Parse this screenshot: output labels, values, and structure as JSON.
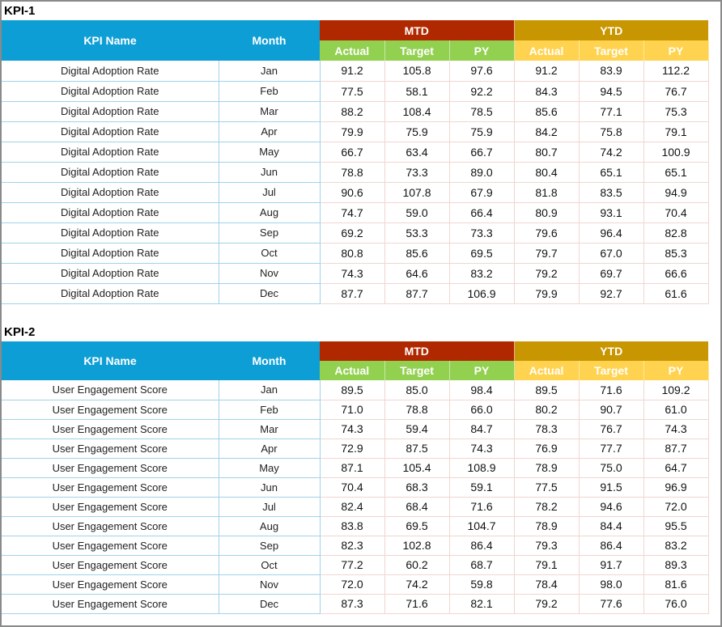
{
  "headers": {
    "kpi_name": "KPI Name",
    "month": "Month",
    "mtd": "MTD",
    "ytd": "YTD",
    "actual": "Actual",
    "target": "Target",
    "py": "PY"
  },
  "colors": {
    "header_blue": "#0E9ED6",
    "mtd_header": "#B02800",
    "ytd_header": "#C89600",
    "mtd_sub": "#92D050",
    "ytd_sub": "#FFD34F"
  },
  "tables": [
    {
      "label": "KPI-1",
      "kpi": "Digital Adoption Rate",
      "rows": [
        [
          "Jan",
          "91.2",
          "105.8",
          "97.6",
          "91.2",
          "83.9",
          "112.2"
        ],
        [
          "Feb",
          "77.5",
          "58.1",
          "92.2",
          "84.3",
          "94.5",
          "76.7"
        ],
        [
          "Mar",
          "88.2",
          "108.4",
          "78.5",
          "85.6",
          "77.1",
          "75.3"
        ],
        [
          "Apr",
          "79.9",
          "75.9",
          "75.9",
          "84.2",
          "75.8",
          "79.1"
        ],
        [
          "May",
          "66.7",
          "63.4",
          "66.7",
          "80.7",
          "74.2",
          "100.9"
        ],
        [
          "Jun",
          "78.8",
          "73.3",
          "89.0",
          "80.4",
          "65.1",
          "65.1"
        ],
        [
          "Jul",
          "90.6",
          "107.8",
          "67.9",
          "81.8",
          "83.5",
          "94.9"
        ],
        [
          "Aug",
          "74.7",
          "59.0",
          "66.4",
          "80.9",
          "93.1",
          "70.4"
        ],
        [
          "Sep",
          "69.2",
          "53.3",
          "73.3",
          "79.6",
          "96.4",
          "82.8"
        ],
        [
          "Oct",
          "80.8",
          "85.6",
          "69.5",
          "79.7",
          "67.0",
          "85.3"
        ],
        [
          "Nov",
          "74.3",
          "64.6",
          "83.2",
          "79.2",
          "69.7",
          "66.6"
        ],
        [
          "Dec",
          "87.7",
          "87.7",
          "106.9",
          "79.9",
          "92.7",
          "61.6"
        ]
      ]
    },
    {
      "label": "KPI-2",
      "kpi": "User Engagement Score",
      "rows": [
        [
          "Jan",
          "89.5",
          "85.0",
          "98.4",
          "89.5",
          "71.6",
          "109.2"
        ],
        [
          "Feb",
          "71.0",
          "78.8",
          "66.0",
          "80.2",
          "90.7",
          "61.0"
        ],
        [
          "Mar",
          "74.3",
          "59.4",
          "84.7",
          "78.3",
          "76.7",
          "74.3"
        ],
        [
          "Apr",
          "72.9",
          "87.5",
          "74.3",
          "76.9",
          "77.7",
          "87.7"
        ],
        [
          "May",
          "87.1",
          "105.4",
          "108.9",
          "78.9",
          "75.0",
          "64.7"
        ],
        [
          "Jun",
          "70.4",
          "68.3",
          "59.1",
          "77.5",
          "91.5",
          "96.9"
        ],
        [
          "Jul",
          "82.4",
          "68.4",
          "71.6",
          "78.2",
          "94.6",
          "72.0"
        ],
        [
          "Aug",
          "83.8",
          "69.5",
          "104.7",
          "78.9",
          "84.4",
          "95.5"
        ],
        [
          "Sep",
          "82.3",
          "102.8",
          "86.4",
          "79.3",
          "86.4",
          "83.2"
        ],
        [
          "Oct",
          "77.2",
          "60.2",
          "68.7",
          "79.1",
          "91.7",
          "89.3"
        ],
        [
          "Nov",
          "72.0",
          "74.2",
          "59.8",
          "78.4",
          "98.0",
          "81.6"
        ],
        [
          "Dec",
          "87.3",
          "71.6",
          "82.1",
          "79.2",
          "77.6",
          "76.0"
        ]
      ]
    }
  ]
}
